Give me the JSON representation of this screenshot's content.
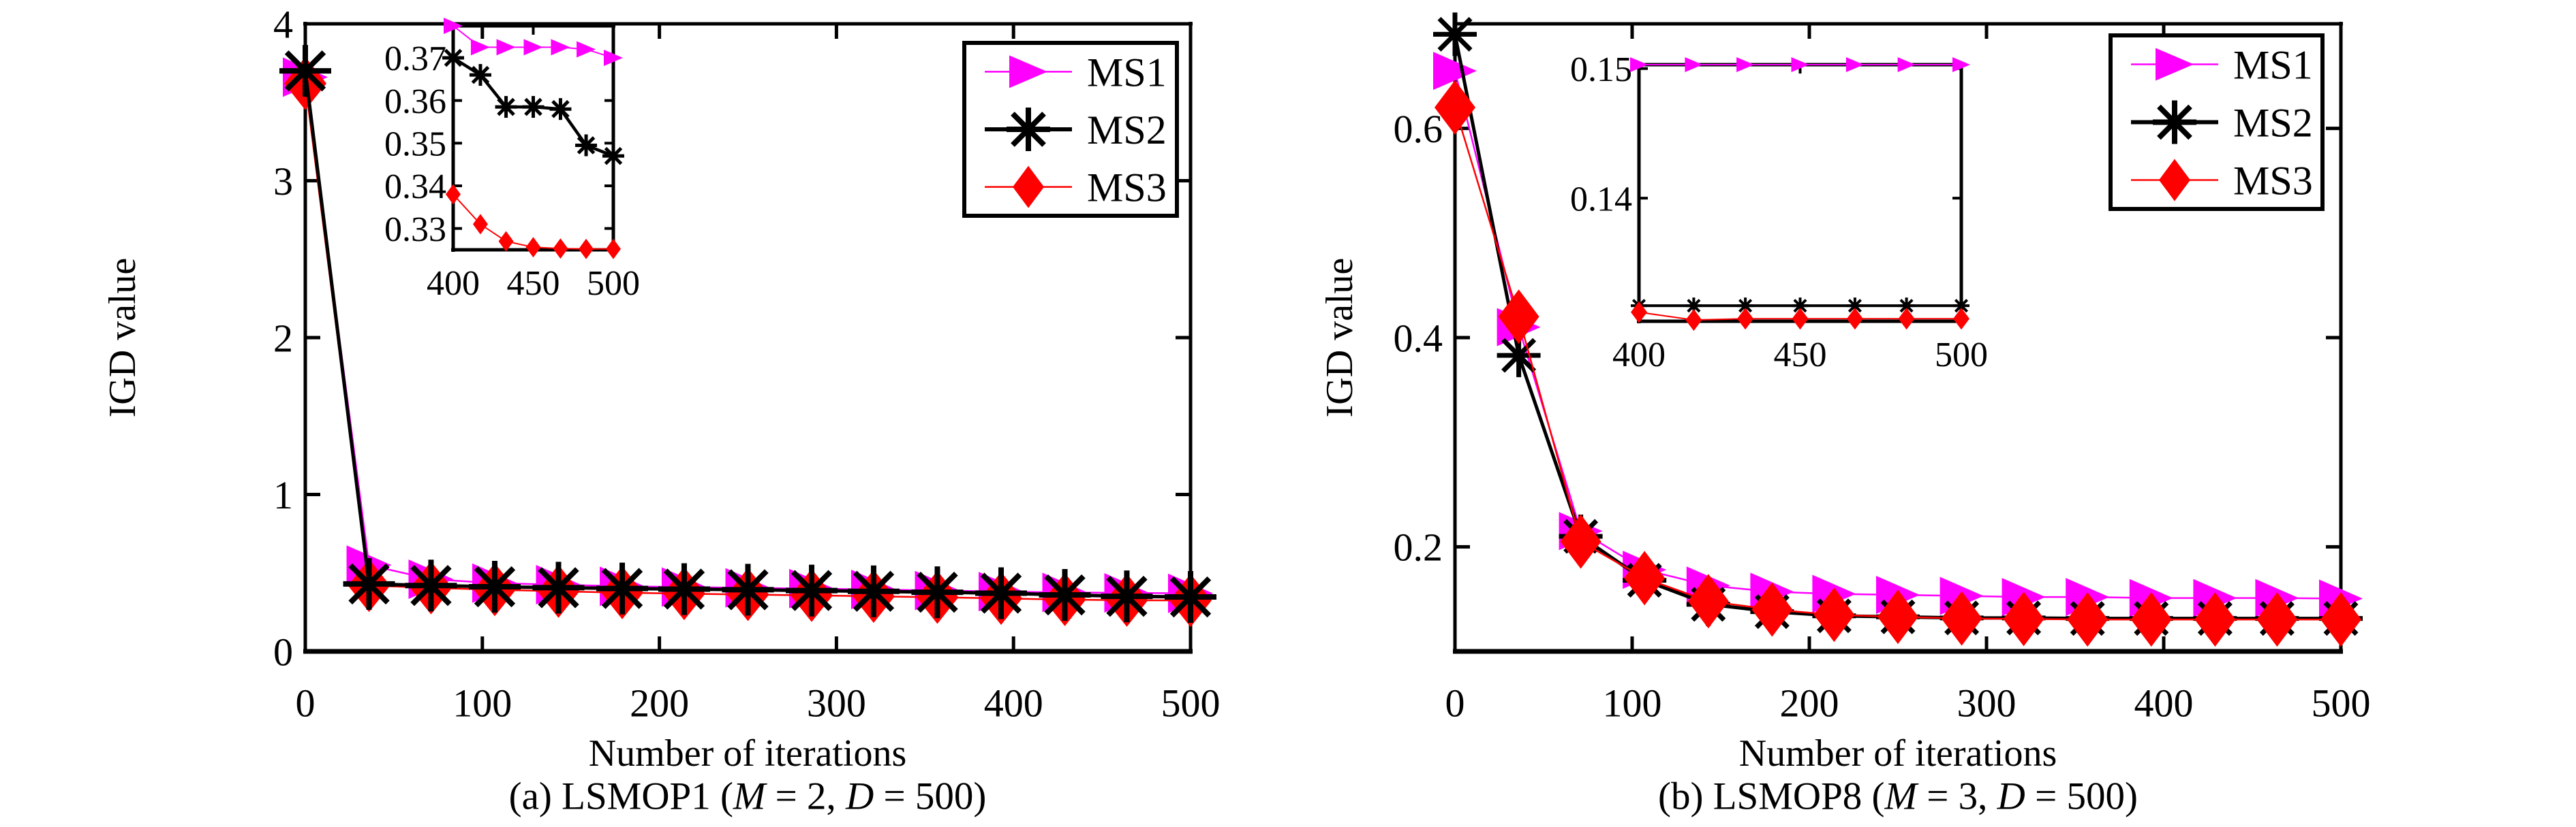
{
  "colors": {
    "MS1": "#ff00ff",
    "MS2": "#000000",
    "MS3": "#ff0000",
    "axis": "#000000",
    "background": "#ffffff"
  },
  "legend": {
    "items": [
      {
        "label": "MS1",
        "marker": "triangle-right",
        "color": "#ff00ff"
      },
      {
        "label": "MS2",
        "marker": "asterisk",
        "color": "#000000"
      },
      {
        "label": "MS3",
        "marker": "diamond",
        "color": "#ff0000"
      }
    ]
  },
  "chart_data": [
    {
      "type": "line",
      "caption_text": "(a) LSMOP1 (M = 2, D = 500)",
      "caption_segments": [
        {
          "text": "(a) LSMOP1 (",
          "italic": false
        },
        {
          "text": "M",
          "italic": true
        },
        {
          "text": " = 2, ",
          "italic": false
        },
        {
          "text": "D",
          "italic": true
        },
        {
          "text": " = 500)",
          "italic": false
        }
      ],
      "xlabel": "Number of iterations",
      "ylabel": "IGD value",
      "xlim": [
        0,
        500
      ],
      "ylim": [
        0,
        4
      ],
      "xticks": [
        0,
        100,
        200,
        300,
        400,
        500
      ],
      "xtick_labels": [
        "0",
        "100",
        "200",
        "300",
        "400",
        "500"
      ],
      "yticks": [
        0,
        1,
        2,
        3,
        4
      ],
      "ytick_labels": [
        "0",
        "1",
        "2",
        "3",
        "4"
      ],
      "x": [
        0,
        36,
        71,
        107,
        143,
        179,
        214,
        250,
        286,
        321,
        357,
        393,
        429,
        464,
        500
      ],
      "series": [
        {
          "name": "MS1",
          "marker": "triangle-right",
          "color": "#ff00ff",
          "values": [
            3.66,
            0.55,
            0.46,
            0.435,
            0.425,
            0.415,
            0.41,
            0.405,
            0.4,
            0.395,
            0.388,
            0.381,
            0.376,
            0.373,
            0.37
          ]
        },
        {
          "name": "MS2",
          "marker": "asterisk",
          "color": "#000000",
          "values": [
            3.7,
            0.43,
            0.42,
            0.412,
            0.406,
            0.401,
            0.397,
            0.393,
            0.388,
            0.383,
            0.377,
            0.371,
            0.36,
            0.351,
            0.347
          ]
        },
        {
          "name": "MS3",
          "marker": "diamond",
          "color": "#ff0000",
          "values": [
            3.62,
            0.42,
            0.405,
            0.393,
            0.383,
            0.374,
            0.368,
            0.362,
            0.357,
            0.351,
            0.345,
            0.338,
            0.33,
            0.326,
            0.325
          ]
        }
      ],
      "inset": {
        "xlim": [
          400,
          500
        ],
        "ylim": [
          0.325,
          0.3775
        ],
        "xticks": [
          400,
          450,
          500
        ],
        "xtick_labels": [
          "400",
          "450",
          "500"
        ],
        "yticks": [
          0.33,
          0.34,
          0.35,
          0.36,
          0.37
        ],
        "ytick_labels": [
          "0.33",
          "0.34",
          "0.35",
          "0.36",
          "0.37"
        ],
        "x": [
          400,
          417,
          433,
          450,
          467,
          483,
          500
        ],
        "series": [
          {
            "name": "MS1",
            "marker": "triangle-right",
            "color": "#ff00ff",
            "values": [
              0.3775,
              0.3725,
              0.3725,
              0.3725,
              0.3725,
              0.372,
              0.37
            ]
          },
          {
            "name": "MS2",
            "marker": "asterisk",
            "color": "#000000",
            "values": [
              0.37,
              0.366,
              0.3585,
              0.3585,
              0.358,
              0.3495,
              0.347
            ]
          },
          {
            "name": "MS3",
            "marker": "diamond",
            "color": "#ff0000",
            "values": [
              0.338,
              0.331,
              0.327,
              0.3256,
              0.3253,
              0.3252,
              0.3252
            ]
          }
        ]
      }
    },
    {
      "type": "line",
      "caption_text": "(b) LSMOP8 (M = 3, D = 500)",
      "caption_segments": [
        {
          "text": "(b) LSMOP8 (",
          "italic": false
        },
        {
          "text": "M",
          "italic": true
        },
        {
          "text": " = 3, ",
          "italic": false
        },
        {
          "text": "D",
          "italic": true
        },
        {
          "text": " = 500)",
          "italic": false
        }
      ],
      "xlabel": "Number of iterations",
      "ylabel": "IGD value",
      "xlim": [
        0,
        500
      ],
      "ylim": [
        0.1,
        0.7
      ],
      "xticks": [
        0,
        100,
        200,
        300,
        400,
        500
      ],
      "xtick_labels": [
        "0",
        "100",
        "200",
        "300",
        "400",
        "500"
      ],
      "yticks": [
        0.2,
        0.4,
        0.6
      ],
      "ytick_labels": [
        "0.2",
        "0.4",
        "0.6"
      ],
      "x": [
        0,
        36,
        71,
        107,
        143,
        179,
        214,
        250,
        286,
        321,
        357,
        393,
        429,
        464,
        500
      ],
      "series": [
        {
          "name": "MS1",
          "marker": "triangle-right",
          "color": "#ff00ff",
          "values": [
            0.655,
            0.41,
            0.215,
            0.178,
            0.163,
            0.157,
            0.155,
            0.154,
            0.153,
            0.152,
            0.152,
            0.151,
            0.151,
            0.151,
            0.1505
          ]
        },
        {
          "name": "MS2",
          "marker": "asterisk",
          "color": "#000000",
          "values": [
            0.69,
            0.383,
            0.21,
            0.168,
            0.145,
            0.138,
            0.134,
            0.133,
            0.132,
            0.132,
            0.1315,
            0.1315,
            0.1315,
            0.1315,
            0.1315
          ]
        },
        {
          "name": "MS3",
          "marker": "diamond",
          "color": "#ff0000",
          "values": [
            0.62,
            0.42,
            0.205,
            0.17,
            0.148,
            0.14,
            0.135,
            0.133,
            0.1315,
            0.131,
            0.1305,
            0.1305,
            0.1305,
            0.1305,
            0.1305
          ]
        }
      ],
      "inset": {
        "xlim": [
          400,
          500
        ],
        "ylim": [
          0.1305,
          0.1503
        ],
        "xticks": [
          400,
          450,
          500
        ],
        "xtick_labels": [
          "400",
          "450",
          "500"
        ],
        "yticks": [
          0.14,
          0.15
        ],
        "ytick_labels": [
          "0.14",
          "0.15"
        ],
        "x": [
          400,
          417,
          433,
          450,
          467,
          483,
          500
        ],
        "series": [
          {
            "name": "MS1",
            "marker": "triangle-right",
            "color": "#ff00ff",
            "values": [
              0.1503,
              0.1503,
              0.1503,
              0.1503,
              0.1503,
              0.1503,
              0.1503
            ]
          },
          {
            "name": "MS2",
            "marker": "asterisk",
            "color": "#000000",
            "values": [
              0.1317,
              0.1317,
              0.1317,
              0.1317,
              0.1317,
              0.1317,
              0.1317
            ]
          },
          {
            "name": "MS3",
            "marker": "diamond",
            "color": "#ff0000",
            "values": [
              0.1312,
              0.1306,
              0.1307,
              0.1307,
              0.1307,
              0.1307,
              0.1307
            ]
          }
        ]
      }
    }
  ]
}
